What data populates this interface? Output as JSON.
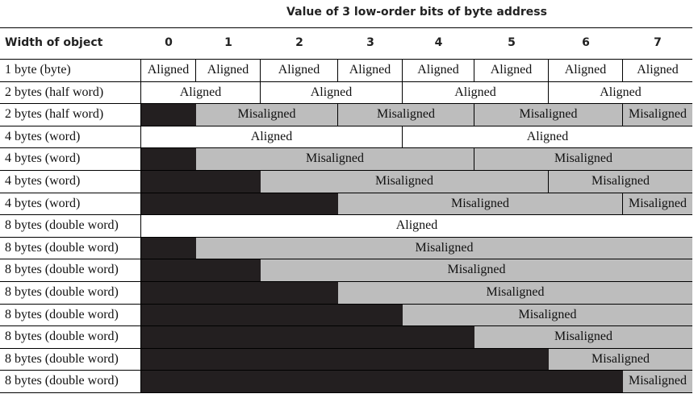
{
  "table": {
    "caption": "Value of 3 low-order bits of byte address",
    "first_column_header": "Width of object",
    "offset_headers": [
      "0",
      "1",
      "2",
      "3",
      "4",
      "5",
      "6",
      "7"
    ],
    "rows": [
      {
        "label": "1 byte (byte)",
        "cells": [
          {
            "start": 0,
            "end": 1,
            "kind": "aligned",
            "text": "Aligned"
          },
          {
            "start": 1,
            "end": 2,
            "kind": "aligned",
            "text": "Aligned"
          },
          {
            "start": 2,
            "end": 3,
            "kind": "aligned",
            "text": "Aligned"
          },
          {
            "start": 3,
            "end": 4,
            "kind": "aligned",
            "text": "Aligned"
          },
          {
            "start": 4,
            "end": 5,
            "kind": "aligned",
            "text": "Aligned"
          },
          {
            "start": 5,
            "end": 6,
            "kind": "aligned",
            "text": "Aligned"
          },
          {
            "start": 6,
            "end": 7,
            "kind": "aligned",
            "text": "Aligned"
          },
          {
            "start": 7,
            "end": 8,
            "kind": "aligned",
            "text": "Aligned"
          }
        ]
      },
      {
        "label": "2 bytes (half word)",
        "cells": [
          {
            "start": 0,
            "end": 2,
            "kind": "aligned",
            "text": "Aligned"
          },
          {
            "start": 2,
            "end": 4,
            "kind": "aligned",
            "text": "Aligned"
          },
          {
            "start": 4,
            "end": 6,
            "kind": "aligned",
            "text": "Aligned"
          },
          {
            "start": 6,
            "end": 8,
            "kind": "aligned",
            "text": "Aligned"
          }
        ]
      },
      {
        "label": "2 bytes (half word)",
        "cells": [
          {
            "start": 0,
            "end": 1,
            "kind": "blocked",
            "text": ""
          },
          {
            "start": 1,
            "end": 3,
            "kind": "misaligned",
            "text": "Misaligned"
          },
          {
            "start": 3,
            "end": 5,
            "kind": "misaligned",
            "text": "Misaligned"
          },
          {
            "start": 5,
            "end": 7,
            "kind": "misaligned",
            "text": "Misaligned"
          },
          {
            "start": 7,
            "end": 8,
            "kind": "misaligned",
            "text": "Misaligned"
          }
        ]
      },
      {
        "label": "4 bytes (word)",
        "cells": [
          {
            "start": 0,
            "end": 4,
            "kind": "aligned",
            "text": "Aligned"
          },
          {
            "start": 4,
            "end": 8,
            "kind": "aligned",
            "text": "Aligned"
          }
        ]
      },
      {
        "label": "4 bytes (word)",
        "cells": [
          {
            "start": 0,
            "end": 1,
            "kind": "blocked",
            "text": ""
          },
          {
            "start": 1,
            "end": 5,
            "kind": "misaligned",
            "text": "Misaligned"
          },
          {
            "start": 5,
            "end": 8,
            "kind": "misaligned",
            "text": "Misaligned"
          }
        ]
      },
      {
        "label": "4 bytes (word)",
        "cells": [
          {
            "start": 0,
            "end": 2,
            "kind": "blocked",
            "text": ""
          },
          {
            "start": 2,
            "end": 6,
            "kind": "misaligned",
            "text": "Misaligned"
          },
          {
            "start": 6,
            "end": 8,
            "kind": "misaligned",
            "text": "Misaligned"
          }
        ]
      },
      {
        "label": "4 bytes (word)",
        "cells": [
          {
            "start": 0,
            "end": 3,
            "kind": "blocked",
            "text": ""
          },
          {
            "start": 3,
            "end": 7,
            "kind": "misaligned",
            "text": "Misaligned"
          },
          {
            "start": 7,
            "end": 8,
            "kind": "misaligned",
            "text": "Misaligned"
          }
        ]
      },
      {
        "label": "8 bytes (double word)",
        "cells": [
          {
            "start": 0,
            "end": 8,
            "kind": "aligned",
            "text": "Aligned"
          }
        ]
      },
      {
        "label": "8 bytes (double word)",
        "cells": [
          {
            "start": 0,
            "end": 1,
            "kind": "blocked",
            "text": ""
          },
          {
            "start": 1,
            "end": 8,
            "kind": "misaligned",
            "text": "Misaligned"
          }
        ]
      },
      {
        "label": "8 bytes (double word)",
        "cells": [
          {
            "start": 0,
            "end": 2,
            "kind": "blocked",
            "text": ""
          },
          {
            "start": 2,
            "end": 8,
            "kind": "misaligned",
            "text": "Misaligned"
          }
        ]
      },
      {
        "label": "8 bytes (double word)",
        "cells": [
          {
            "start": 0,
            "end": 3,
            "kind": "blocked",
            "text": ""
          },
          {
            "start": 3,
            "end": 8,
            "kind": "misaligned",
            "text": "Misaligned"
          }
        ]
      },
      {
        "label": "8 bytes (double word)",
        "cells": [
          {
            "start": 0,
            "end": 4,
            "kind": "blocked",
            "text": ""
          },
          {
            "start": 4,
            "end": 8,
            "kind": "misaligned",
            "text": "Misaligned"
          }
        ]
      },
      {
        "label": "8 bytes (double word)",
        "cells": [
          {
            "start": 0,
            "end": 5,
            "kind": "blocked",
            "text": ""
          },
          {
            "start": 5,
            "end": 8,
            "kind": "misaligned",
            "text": "Misaligned"
          }
        ]
      },
      {
        "label": "8 bytes (double word)",
        "cells": [
          {
            "start": 0,
            "end": 6,
            "kind": "blocked",
            "text": ""
          },
          {
            "start": 6,
            "end": 8,
            "kind": "misaligned",
            "text": "Misaligned"
          }
        ]
      },
      {
        "label": "8 bytes (double word)",
        "cells": [
          {
            "start": 0,
            "end": 7,
            "kind": "blocked",
            "text": ""
          },
          {
            "start": 7,
            "end": 8,
            "kind": "misaligned",
            "text": "Misaligned"
          }
        ]
      }
    ]
  },
  "colors": {
    "aligned_fill": "#ffffff",
    "misaligned_fill": "#bdbdbd",
    "blocked_fill": "#231f20",
    "rule": "#000000"
  }
}
